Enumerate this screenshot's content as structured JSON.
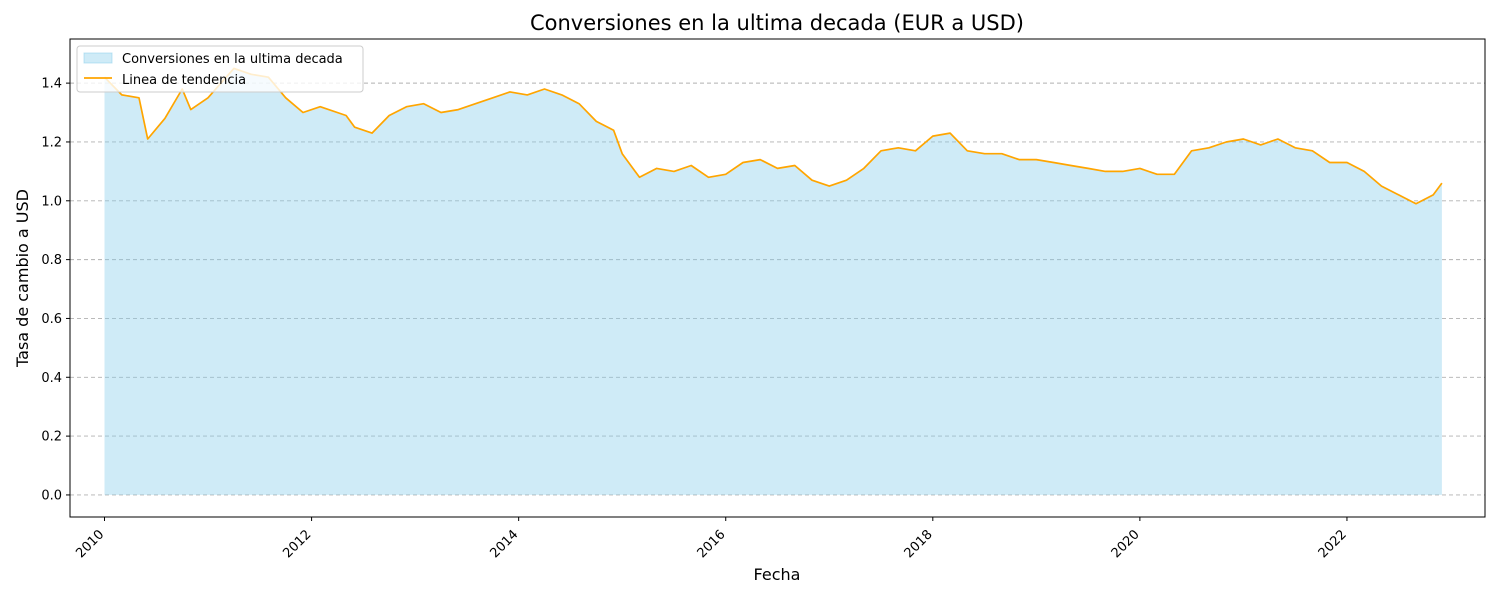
{
  "chart_data": {
    "type": "area",
    "title": "Conversiones en la ultima decada (EUR a USD)",
    "xlabel": "Fecha",
    "ylabel": "Tasa de cambio a USD",
    "xlim": [
      "2009-09-01",
      "2023-05-01"
    ],
    "ylim": [
      -0.075,
      1.55
    ],
    "x_ticks": [
      "2010",
      "2012",
      "2014",
      "2016",
      "2018",
      "2020",
      "2022"
    ],
    "y_ticks": [
      "0.0",
      "0.2",
      "0.4",
      "0.6",
      "0.8",
      "1.0",
      "1.2",
      "1.4"
    ],
    "grid": {
      "y": true,
      "x": false,
      "style": "dashed"
    },
    "legend": {
      "position": "upper-left",
      "entries": [
        {
          "label": "Conversiones en la ultima decada",
          "kind": "area"
        },
        {
          "label": "Linea de tendencia",
          "kind": "line"
        }
      ]
    },
    "colors": {
      "fill": "#87ceeb",
      "line": "#ffa500",
      "grid": "#b0b0b0"
    },
    "series": [
      {
        "x": [
          "2010-01",
          "2010-03",
          "2010-05",
          "2010-06",
          "2010-08",
          "2010-10",
          "2010-11",
          "2011-01",
          "2011-04",
          "2011-06",
          "2011-08",
          "2011-10",
          "2011-12",
          "2012-02",
          "2012-05",
          "2012-06",
          "2012-08",
          "2012-10",
          "2012-12",
          "2013-02",
          "2013-04",
          "2013-06",
          "2013-08",
          "2013-10",
          "2013-12",
          "2014-02",
          "2014-04",
          "2014-06",
          "2014-08",
          "2014-10",
          "2014-12",
          "2015-01",
          "2015-03",
          "2015-05",
          "2015-07",
          "2015-09",
          "2015-11",
          "2016-01",
          "2016-03",
          "2016-05",
          "2016-07",
          "2016-09",
          "2016-11",
          "2017-01",
          "2017-03",
          "2017-05",
          "2017-07",
          "2017-09",
          "2017-11",
          "2018-01",
          "2018-03",
          "2018-05",
          "2018-07",
          "2018-09",
          "2018-11",
          "2019-01",
          "2019-03",
          "2019-05",
          "2019-07",
          "2019-09",
          "2019-11",
          "2020-01",
          "2020-03",
          "2020-05",
          "2020-07",
          "2020-09",
          "2020-11",
          "2021-01",
          "2021-03",
          "2021-05",
          "2021-07",
          "2021-09",
          "2021-11",
          "2022-01",
          "2022-03",
          "2022-05",
          "2022-07",
          "2022-09",
          "2022-11",
          "2022-12"
        ],
        "values": [
          1.42,
          1.36,
          1.35,
          1.21,
          1.28,
          1.38,
          1.31,
          1.35,
          1.45,
          1.43,
          1.42,
          1.35,
          1.3,
          1.32,
          1.29,
          1.25,
          1.23,
          1.29,
          1.32,
          1.33,
          1.3,
          1.31,
          1.33,
          1.35,
          1.37,
          1.36,
          1.38,
          1.36,
          1.33,
          1.27,
          1.24,
          1.16,
          1.08,
          1.11,
          1.1,
          1.12,
          1.08,
          1.09,
          1.13,
          1.14,
          1.11,
          1.12,
          1.07,
          1.05,
          1.07,
          1.11,
          1.17,
          1.18,
          1.17,
          1.22,
          1.23,
          1.17,
          1.16,
          1.16,
          1.14,
          1.14,
          1.13,
          1.12,
          1.11,
          1.1,
          1.1,
          1.11,
          1.09,
          1.09,
          1.17,
          1.18,
          1.2,
          1.21,
          1.19,
          1.21,
          1.18,
          1.17,
          1.13,
          1.13,
          1.1,
          1.05,
          1.02,
          0.99,
          1.02,
          1.06
        ]
      }
    ]
  }
}
